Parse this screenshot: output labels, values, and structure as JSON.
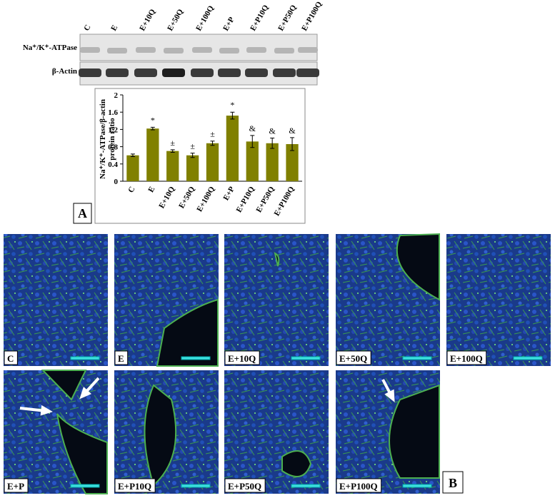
{
  "blot": {
    "lanes": [
      "C",
      "E",
      "E+10Q",
      "E+50Q",
      "E+100Q",
      "E+P",
      "E+P10Q",
      "E+P50Q",
      "E+P100Q"
    ],
    "rows": [
      "Na⁺/K⁺-ATPase",
      "β-Actin"
    ]
  },
  "chart_data": {
    "type": "bar",
    "ylabel": "Na⁺/K⁺-ATPase/β-actin protein ratio",
    "categories": [
      "C",
      "E",
      "E+10Q",
      "E+50Q",
      "E+100Q",
      "E+P",
      "E+P10Q",
      "E+P50Q",
      "E+P100Q"
    ],
    "values": [
      0.6,
      1.22,
      0.7,
      0.6,
      0.88,
      1.52,
      0.92,
      0.88,
      0.86
    ],
    "errors": [
      0.03,
      0.03,
      0.03,
      0.05,
      0.05,
      0.08,
      0.14,
      0.12,
      0.15
    ],
    "annotations": [
      null,
      "*",
      "±",
      "±",
      "±",
      "*",
      "&",
      "&",
      "&"
    ],
    "color": "#808000",
    "ylim": [
      0,
      2
    ],
    "yticks": [
      0,
      0.4,
      0.8,
      1.2,
      1.6,
      2
    ]
  },
  "panel_labels": [
    "A",
    "B"
  ],
  "images": {
    "labels": [
      "C",
      "E",
      "E+10Q",
      "E+50Q",
      "E+100Q",
      "E+P",
      "E+P10Q",
      "E+P50Q",
      "E+P100Q"
    ]
  }
}
